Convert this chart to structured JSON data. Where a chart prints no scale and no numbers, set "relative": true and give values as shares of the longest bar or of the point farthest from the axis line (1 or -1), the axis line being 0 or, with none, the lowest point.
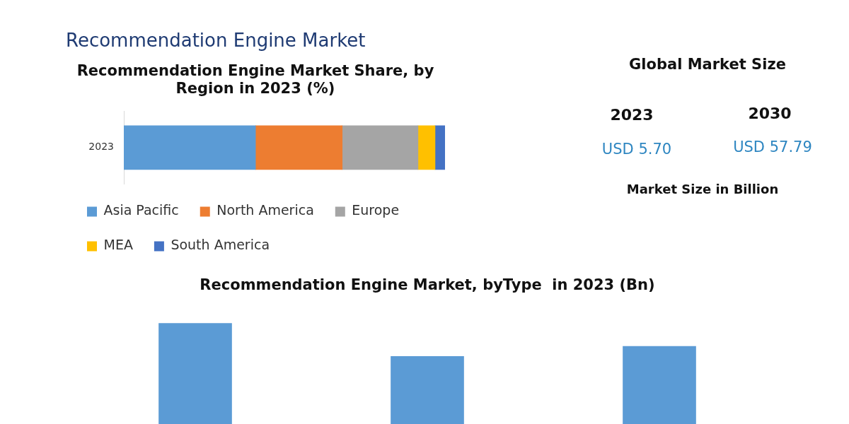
{
  "chart_data": [
    {
      "type": "bar",
      "title": "Recommendation Engine Market",
      "subtitle": "Recommendation Engine Market Share, by Region in 2023 (%)",
      "orientation": "horizontal",
      "stacked": true,
      "relative": true,
      "categories": [
        "2023"
      ],
      "legend": "bottom left",
      "series": [
        {
          "name": "Asia Pacific",
          "color": "#5b9bd5",
          "values": [
            0.41
          ]
        },
        {
          "name": "North America",
          "color": "#ed7d31",
          "values": [
            0.27
          ]
        },
        {
          "name": "Europe",
          "color": "#a5a5a5",
          "values": [
            0.236
          ]
        },
        {
          "name": "MEA",
          "color": "#ffc000",
          "values": [
            0.053
          ]
        },
        {
          "name": "South America",
          "color": "#4472c4",
          "values": [
            0.031
          ]
        }
      ]
    },
    {
      "type": "bar",
      "title": "Recommendation Engine Market, byType  in 2023 (Bn)",
      "relative": true,
      "categories": [
        null,
        null,
        null
      ],
      "values": [
        1,
        0.67,
        0.77
      ],
      "color": "#5b9bd5"
    },
    {
      "type": "other",
      "title": "Global Market Size",
      "annotations": [
        "2023",
        "2030",
        "USD 5.70",
        "USD 57.79",
        "Market Size in Billion"
      ]
    }
  ]
}
